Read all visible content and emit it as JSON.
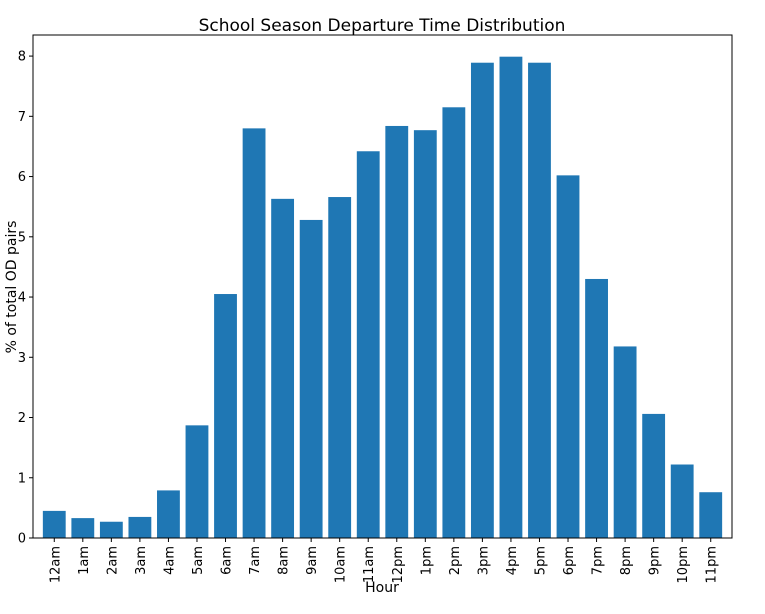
{
  "chart_data": {
    "type": "bar",
    "title": "School Season Departure Time Distribution",
    "xlabel": "Hour",
    "ylabel": "% of total OD pairs",
    "categories": [
      "12am",
      "1am",
      "2am",
      "3am",
      "4am",
      "5am",
      "6am",
      "7am",
      "8am",
      "9am",
      "10am",
      "11am",
      "12pm",
      "1pm",
      "2pm",
      "3pm",
      "4pm",
      "5pm",
      "6pm",
      "7pm",
      "8pm",
      "9pm",
      "10pm",
      "11pm"
    ],
    "values": [
      0.45,
      0.33,
      0.27,
      0.35,
      0.79,
      1.87,
      4.05,
      6.8,
      5.63,
      5.28,
      5.66,
      6.42,
      6.84,
      6.77,
      7.15,
      7.89,
      7.99,
      7.89,
      6.02,
      4.3,
      3.18,
      2.06,
      1.22,
      0.76
    ],
    "ylim": [
      0,
      8.35
    ],
    "yticks": [
      0,
      1,
      2,
      3,
      4,
      5,
      6,
      7,
      8
    ],
    "bar_color": "#1f77b4",
    "grid": false,
    "legend": "none"
  }
}
